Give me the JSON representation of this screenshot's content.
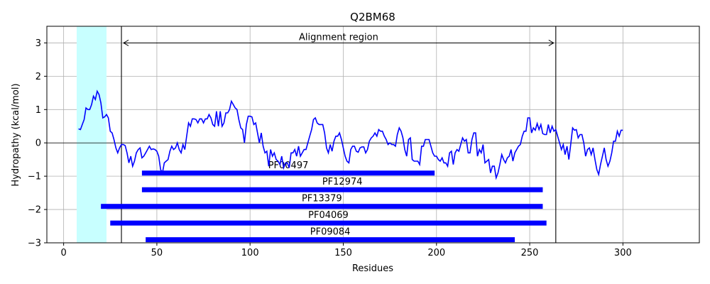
{
  "chart_data": {
    "type": "line",
    "title": "Q2BM68",
    "xlabel": "Residues",
    "ylabel": "Hydropathy (kcal/mol)",
    "xlim": [
      -9,
      341
    ],
    "ylim": [
      -3,
      3.5
    ],
    "xticks": [
      0,
      50,
      100,
      150,
      200,
      250,
      300
    ],
    "yticks": [
      -3,
      -2,
      -1,
      0,
      1,
      2,
      3
    ],
    "grid": true,
    "line_color": "#0000ff",
    "series": [
      {
        "values": [
          [
            8,
            0.42
          ],
          [
            9,
            0.4
          ],
          [
            10,
            0.55
          ],
          [
            11,
            0.7
          ],
          [
            12,
            1.05
          ],
          [
            13,
            1.0
          ],
          [
            14,
            1.0
          ],
          [
            15,
            1.15
          ],
          [
            16,
            1.4
          ],
          [
            17,
            1.3
          ],
          [
            18,
            1.55
          ],
          [
            19,
            1.45
          ],
          [
            20,
            1.2
          ],
          [
            21,
            0.75
          ],
          [
            22,
            0.78
          ],
          [
            23,
            0.85
          ],
          [
            24,
            0.75
          ],
          [
            25,
            0.35
          ],
          [
            26,
            0.3
          ],
          [
            27,
            0.1
          ],
          [
            28,
            -0.15
          ],
          [
            29,
            -0.3
          ],
          [
            30,
            -0.15
          ],
          [
            31,
            -0.05
          ],
          [
            32,
            -0.05
          ],
          [
            33,
            -0.08
          ],
          [
            34,
            -0.3
          ],
          [
            35,
            -0.6
          ],
          [
            36,
            -0.4
          ],
          [
            37,
            -0.7
          ],
          [
            38,
            -0.55
          ],
          [
            39,
            -0.3
          ],
          [
            40,
            -0.2
          ],
          [
            41,
            -0.15
          ],
          [
            42,
            -0.45
          ],
          [
            43,
            -0.4
          ],
          [
            44,
            -0.3
          ],
          [
            45,
            -0.2
          ],
          [
            46,
            -0.1
          ],
          [
            47,
            -0.2
          ],
          [
            48,
            -0.18
          ],
          [
            49,
            -0.2
          ],
          [
            50,
            -0.25
          ],
          [
            51,
            -0.4
          ],
          [
            52,
            -0.8
          ],
          [
            53,
            -0.9
          ],
          [
            54,
            -0.6
          ],
          [
            55,
            -0.55
          ],
          [
            56,
            -0.5
          ],
          [
            57,
            -0.25
          ],
          [
            58,
            -0.1
          ],
          [
            59,
            -0.2
          ],
          [
            60,
            -0.15
          ],
          [
            61,
            0.0
          ],
          [
            62,
            -0.2
          ],
          [
            63,
            -0.3
          ],
          [
            64,
            -0.05
          ],
          [
            65,
            -0.2
          ],
          [
            66,
            0.2
          ],
          [
            67,
            0.6
          ],
          [
            68,
            0.5
          ],
          [
            69,
            0.72
          ],
          [
            70,
            0.72
          ],
          [
            71,
            0.7
          ],
          [
            72,
            0.6
          ],
          [
            73,
            0.72
          ],
          [
            74,
            0.72
          ],
          [
            75,
            0.6
          ],
          [
            76,
            0.72
          ],
          [
            77,
            0.72
          ],
          [
            78,
            0.85
          ],
          [
            79,
            0.75
          ],
          [
            80,
            0.55
          ],
          [
            81,
            0.5
          ],
          [
            82,
            0.95
          ],
          [
            83,
            0.5
          ],
          [
            84,
            0.95
          ],
          [
            85,
            0.5
          ],
          [
            86,
            0.6
          ],
          [
            87,
            0.9
          ],
          [
            88,
            0.9
          ],
          [
            89,
            1.0
          ],
          [
            90,
            1.25
          ],
          [
            91,
            1.15
          ],
          [
            92,
            1.05
          ],
          [
            93,
            1.0
          ],
          [
            94,
            0.7
          ],
          [
            95,
            0.45
          ],
          [
            96,
            0.4
          ],
          [
            97,
            0.0
          ],
          [
            98,
            0.55
          ],
          [
            99,
            0.8
          ],
          [
            100,
            0.8
          ],
          [
            101,
            0.78
          ],
          [
            102,
            0.55
          ],
          [
            103,
            0.6
          ],
          [
            104,
            0.3
          ],
          [
            105,
            0.0
          ],
          [
            106,
            0.3
          ],
          [
            107,
            -0.1
          ],
          [
            108,
            -0.3
          ],
          [
            109,
            -0.25
          ],
          [
            110,
            -0.7
          ],
          [
            111,
            -0.2
          ],
          [
            112,
            -0.4
          ],
          [
            113,
            -0.3
          ],
          [
            114,
            -0.5
          ],
          [
            115,
            -0.55
          ],
          [
            116,
            -0.65
          ],
          [
            117,
            -0.4
          ],
          [
            118,
            -0.75
          ],
          [
            119,
            -0.6
          ],
          [
            120,
            -0.6
          ],
          [
            121,
            -0.75
          ],
          [
            122,
            -0.3
          ],
          [
            123,
            -0.3
          ],
          [
            124,
            -0.2
          ],
          [
            125,
            -0.4
          ],
          [
            126,
            -0.1
          ],
          [
            127,
            -0.4
          ],
          [
            128,
            -0.3
          ],
          [
            129,
            -0.2
          ],
          [
            130,
            -0.2
          ],
          [
            131,
            0.0
          ],
          [
            132,
            0.2
          ],
          [
            133,
            0.4
          ],
          [
            134,
            0.7
          ],
          [
            135,
            0.75
          ],
          [
            136,
            0.6
          ],
          [
            137,
            0.55
          ],
          [
            138,
            0.55
          ],
          [
            139,
            0.55
          ],
          [
            140,
            0.3
          ],
          [
            141,
            -0.15
          ],
          [
            142,
            -0.3
          ],
          [
            143,
            -0.05
          ],
          [
            144,
            -0.25
          ],
          [
            145,
            0.05
          ],
          [
            146,
            0.2
          ],
          [
            147,
            0.2
          ],
          [
            148,
            0.3
          ],
          [
            149,
            0.1
          ],
          [
            150,
            -0.15
          ],
          [
            151,
            -0.4
          ],
          [
            152,
            -0.55
          ],
          [
            153,
            -0.6
          ],
          [
            154,
            -0.2
          ],
          [
            155,
            -0.1
          ],
          [
            156,
            -0.1
          ],
          [
            157,
            -0.25
          ],
          [
            158,
            -0.28
          ],
          [
            159,
            -0.15
          ],
          [
            160,
            -0.12
          ],
          [
            161,
            -0.12
          ],
          [
            162,
            -0.3
          ],
          [
            163,
            -0.2
          ],
          [
            164,
            0.05
          ],
          [
            165,
            0.15
          ],
          [
            166,
            0.2
          ],
          [
            167,
            0.3
          ],
          [
            168,
            0.2
          ],
          [
            169,
            0.4
          ],
          [
            170,
            0.35
          ],
          [
            171,
            0.35
          ],
          [
            172,
            0.2
          ],
          [
            173,
            0.1
          ],
          [
            174,
            -0.05
          ],
          [
            175,
            0.0
          ],
          [
            176,
            -0.05
          ],
          [
            177,
            -0.05
          ],
          [
            178,
            -0.1
          ],
          [
            179,
            0.25
          ],
          [
            180,
            0.45
          ],
          [
            181,
            0.35
          ],
          [
            182,
            0.15
          ],
          [
            183,
            -0.2
          ],
          [
            184,
            -0.4
          ],
          [
            185,
            0.1
          ],
          [
            186,
            0.15
          ],
          [
            187,
            -0.5
          ],
          [
            188,
            -0.55
          ],
          [
            189,
            -0.55
          ],
          [
            190,
            -0.55
          ],
          [
            191,
            -0.65
          ],
          [
            192,
            -0.1
          ],
          [
            193,
            -0.1
          ],
          [
            194,
            0.1
          ],
          [
            195,
            0.1
          ],
          [
            196,
            0.1
          ],
          [
            197,
            -0.1
          ],
          [
            198,
            -0.3
          ],
          [
            199,
            -0.4
          ],
          [
            200,
            -0.4
          ],
          [
            201,
            -0.5
          ],
          [
            202,
            -0.55
          ],
          [
            203,
            -0.45
          ],
          [
            204,
            -0.6
          ],
          [
            205,
            -0.6
          ],
          [
            206,
            -0.7
          ],
          [
            207,
            -0.3
          ],
          [
            208,
            -0.25
          ],
          [
            209,
            -0.65
          ],
          [
            210,
            -0.3
          ],
          [
            211,
            -0.2
          ],
          [
            212,
            -0.25
          ],
          [
            213,
            -0.05
          ],
          [
            214,
            0.15
          ],
          [
            215,
            0.05
          ],
          [
            216,
            0.1
          ],
          [
            217,
            -0.3
          ],
          [
            218,
            -0.3
          ],
          [
            219,
            0.1
          ],
          [
            220,
            0.3
          ],
          [
            221,
            0.3
          ],
          [
            222,
            -0.4
          ],
          [
            223,
            -0.2
          ],
          [
            224,
            -0.3
          ],
          [
            225,
            -0.05
          ],
          [
            226,
            -0.6
          ],
          [
            227,
            -0.55
          ],
          [
            228,
            -0.5
          ],
          [
            229,
            -0.9
          ],
          [
            230,
            -0.7
          ],
          [
            231,
            -0.7
          ],
          [
            232,
            -1.05
          ],
          [
            233,
            -0.9
          ],
          [
            234,
            -0.65
          ],
          [
            235,
            -0.35
          ],
          [
            236,
            -0.5
          ],
          [
            237,
            -0.6
          ],
          [
            238,
            -0.45
          ],
          [
            239,
            -0.4
          ],
          [
            240,
            -0.2
          ],
          [
            241,
            -0.55
          ],
          [
            242,
            -0.3
          ],
          [
            243,
            -0.2
          ],
          [
            244,
            -0.1
          ],
          [
            245,
            -0.05
          ],
          [
            246,
            0.2
          ],
          [
            247,
            0.35
          ],
          [
            248,
            0.35
          ],
          [
            249,
            0.75
          ],
          [
            250,
            0.75
          ],
          [
            251,
            0.3
          ],
          [
            252,
            0.45
          ],
          [
            253,
            0.38
          ],
          [
            254,
            0.58
          ],
          [
            255,
            0.4
          ],
          [
            256,
            0.55
          ],
          [
            257,
            0.28
          ],
          [
            258,
            0.25
          ],
          [
            259,
            0.25
          ],
          [
            260,
            0.55
          ],
          [
            261,
            0.3
          ],
          [
            262,
            0.5
          ],
          [
            263,
            0.35
          ],
          [
            264,
            0.4
          ],
          [
            265,
            0.2
          ],
          [
            266,
            0.0
          ],
          [
            267,
            -0.2
          ],
          [
            268,
            -0.05
          ],
          [
            269,
            -0.35
          ],
          [
            270,
            -0.1
          ],
          [
            271,
            -0.5
          ],
          [
            272,
            -0.05
          ],
          [
            273,
            0.45
          ],
          [
            274,
            0.38
          ],
          [
            275,
            0.4
          ],
          [
            276,
            0.15
          ],
          [
            277,
            0.25
          ],
          [
            278,
            0.25
          ],
          [
            279,
            0.0
          ],
          [
            280,
            -0.4
          ],
          [
            281,
            -0.2
          ],
          [
            282,
            -0.15
          ],
          [
            283,
            -0.35
          ],
          [
            284,
            -0.15
          ],
          [
            285,
            -0.5
          ],
          [
            286,
            -0.8
          ],
          [
            287,
            -0.95
          ],
          [
            288,
            -0.65
          ],
          [
            289,
            -0.4
          ],
          [
            290,
            -0.15
          ],
          [
            291,
            -0.5
          ],
          [
            292,
            -0.7
          ],
          [
            293,
            -0.55
          ],
          [
            294,
            -0.3
          ],
          [
            295,
            0.05
          ],
          [
            296,
            0.05
          ],
          [
            297,
            0.35
          ],
          [
            298,
            0.2
          ],
          [
            299,
            0.38
          ],
          [
            300,
            0.38
          ]
        ]
      }
    ],
    "signal_region": {
      "x_range": [
        7,
        23
      ],
      "color": "#c8ffff"
    },
    "alignment_region": {
      "label": "Alignment region",
      "x_range": [
        31,
        264
      ],
      "y": 3.0
    },
    "domains": [
      {
        "name": "PF00497",
        "start": 42,
        "end": 199,
        "y": -0.8
      },
      {
        "name": "PF12974",
        "start": 42,
        "end": 257,
        "y": -1.3
      },
      {
        "name": "PF13379",
        "start": 20,
        "end": 257,
        "y": -1.8
      },
      {
        "name": "PF04069",
        "start": 25,
        "end": 259,
        "y": -2.3
      },
      {
        "name": "PF09084",
        "start": 44,
        "end": 242,
        "y": -2.8
      }
    ],
    "domain_color": "#0000ff"
  }
}
